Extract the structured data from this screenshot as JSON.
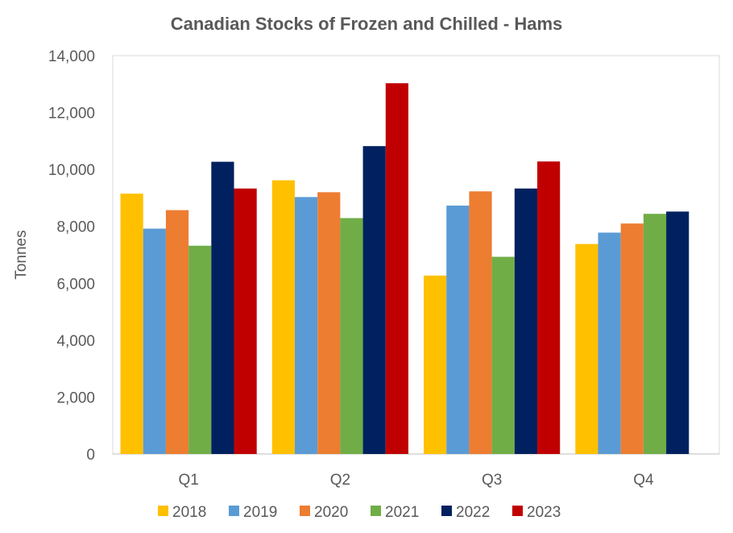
{
  "chart_data": {
    "type": "bar",
    "title": "Canadian Stocks of Frozen and Chilled - Hams",
    "xlabel": "",
    "ylabel": "Tonnes",
    "ylim": [
      0,
      14000
    ],
    "yticks": [
      "0",
      "2,000",
      "4,000",
      "6,000",
      "8,000",
      "10,000",
      "12,000",
      "14,000"
    ],
    "grid": false,
    "legend_position": "bottom",
    "categories": [
      "Q1",
      "Q2",
      "Q3",
      "Q4"
    ],
    "series": [
      {
        "name": "2018",
        "color": "#FFC000",
        "values": [
          9150,
          9620,
          6270,
          7380
        ]
      },
      {
        "name": "2019",
        "color": "#5B9BD5",
        "values": [
          7920,
          9030,
          8730,
          7780
        ]
      },
      {
        "name": "2020",
        "color": "#ED7D31",
        "values": [
          8570,
          9200,
          9230,
          8100
        ]
      },
      {
        "name": "2021",
        "color": "#70AD47",
        "values": [
          7320,
          8290,
          6930,
          8440
        ]
      },
      {
        "name": "2022",
        "color": "#002060",
        "values": [
          10270,
          10820,
          9330,
          8520
        ]
      },
      {
        "name": "2023",
        "color": "#C00000",
        "values": [
          9330,
          13030,
          10280,
          null
        ]
      }
    ]
  }
}
